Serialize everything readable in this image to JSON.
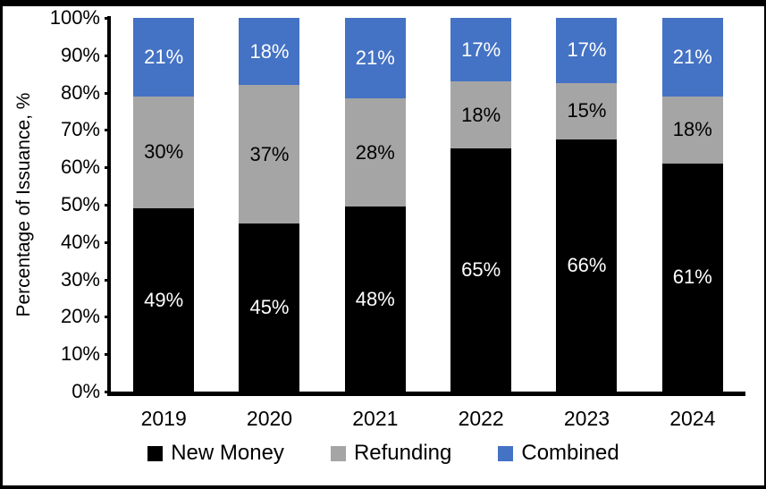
{
  "frame": {
    "background": "#ffffff",
    "border_color": "#000000"
  },
  "chart_data": {
    "type": "bar",
    "stacked": true,
    "percent_suffix": "%",
    "title": "",
    "xlabel": "",
    "ylabel": "Percentage of Issuance, %",
    "ylim": [
      0,
      100
    ],
    "grid": false,
    "legend_position": "bottom",
    "categories": [
      "2019",
      "2020",
      "2021",
      "2022",
      "2023",
      "2024"
    ],
    "series": [
      {
        "name": "New Money",
        "color": "#000000",
        "label_color": "#ffffff",
        "values": [
          49,
          45,
          48,
          65,
          66,
          61
        ]
      },
      {
        "name": "Refunding",
        "color": "#a5a5a5",
        "label_color": "#000000",
        "values": [
          30,
          37,
          28,
          18,
          15,
          18
        ]
      },
      {
        "name": "Combined",
        "color": "#4472c4",
        "label_color": "#ffffff",
        "values": [
          21,
          18,
          21,
          17,
          17,
          21
        ]
      }
    ],
    "y_ticks": [
      "0%",
      "10%",
      "20%",
      "30%",
      "40%",
      "50%",
      "60%",
      "70%",
      "80%",
      "90%",
      "100%"
    ]
  }
}
